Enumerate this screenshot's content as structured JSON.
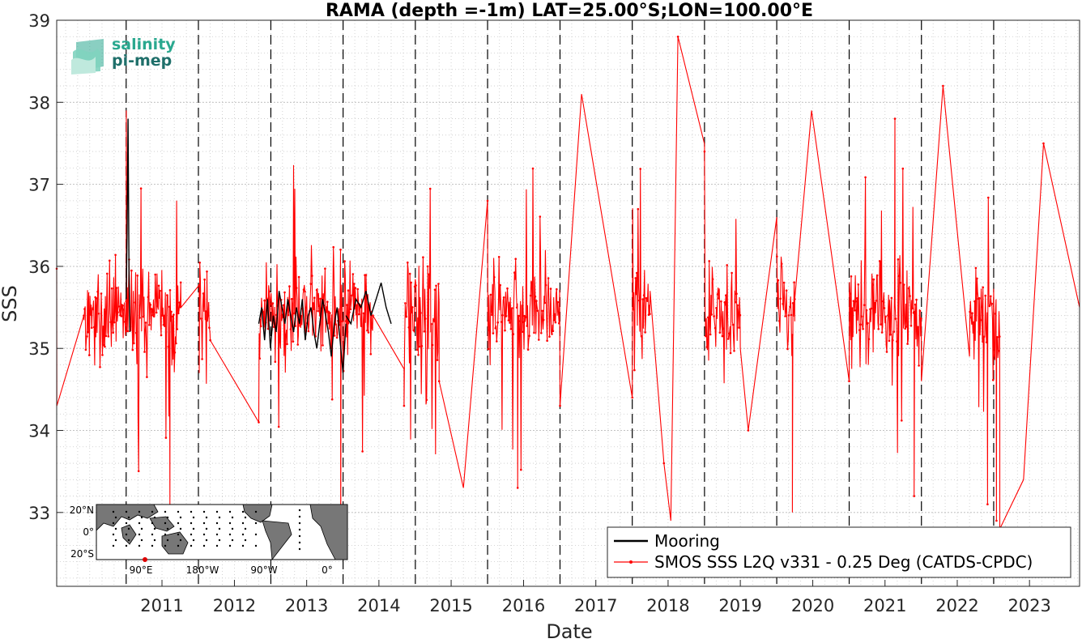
{
  "logo": {
    "line1": "salinity",
    "line2": "pi-mep"
  },
  "chart_data": {
    "type": "line",
    "title": "RAMA (depth =-1m) LAT=25.00°S;LON=100.00°E",
    "xlabel": "Date",
    "ylabel": "SSS",
    "xlim": [
      "2010-01-15",
      "2024-03-10"
    ],
    "ylim": [
      32.1,
      39
    ],
    "yticks": [
      "33",
      "34",
      "35",
      "36",
      "37",
      "38",
      "39"
    ],
    "xticks": [
      "2011",
      "2012",
      "2013",
      "2014",
      "2015",
      "2016",
      "2017",
      "2018",
      "2019",
      "2020",
      "2021",
      "2022",
      "2023"
    ],
    "grid": true,
    "year_dashed_lines": true,
    "legend_position": "bottom-right",
    "series": [
      {
        "name": "Mooring",
        "color": "#000000",
        "segments": [
          {
            "start": "2011-01-01",
            "end": "2011-01-20",
            "values": [
              35.6,
              36.4,
              37.8,
              35.9,
              35.2
            ]
          },
          {
            "start": "2012-11-01",
            "end": "2014-01-15",
            "values": [
              35.3,
              35.5,
              35.1,
              35.6,
              35.0,
              35.4,
              35.2,
              35.7,
              35.5,
              35.3,
              35.6,
              35.4,
              35.2,
              35.5,
              35.3,
              35.6,
              35.1,
              35.4,
              35.5,
              35.2,
              35.0,
              35.3,
              35.6,
              35.4,
              35.2,
              34.9,
              35.3,
              35.5,
              35.1,
              34.7,
              35.3
            ]
          },
          {
            "start": "2014-01-15",
            "end": "2014-09-01",
            "values": [
              35.4,
              35.3,
              35.6,
              35.5,
              35.7,
              35.4,
              35.6,
              35.8,
              35.5,
              35.3
            ]
          }
        ]
      },
      {
        "name": "SMOS SSS L2Q v331 - 0.25 Deg (CATDS-CPDC)",
        "color": "#ff0000",
        "mean": 35.45,
        "typical_range": [
          33.5,
          37.5
        ],
        "approx_step_days": 3,
        "extremes": [
          {
            "date": "2011-01-02",
            "value": 37.9
          },
          {
            "date": "2011-08-10",
            "value": 33.1
          },
          {
            "date": "2012-11-01",
            "value": 34.1
          },
          {
            "date": "2013-12-20",
            "value": 32.5
          },
          {
            "date": "2015-09-01",
            "value": 33.3
          },
          {
            "date": "2016-06-01",
            "value": 33.3
          },
          {
            "date": "2017-04-20",
            "value": 38.1
          },
          {
            "date": "2018-06-10",
            "value": 33.6
          },
          {
            "date": "2018-07-15",
            "value": 32.9
          },
          {
            "date": "2018-08-20",
            "value": 38.8
          },
          {
            "date": "2019-08-10",
            "value": 34.0
          },
          {
            "date": "2020-03-20",
            "value": 33.0
          },
          {
            "date": "2020-06-25",
            "value": 37.9
          },
          {
            "date": "2021-08-20",
            "value": 37.8
          },
          {
            "date": "2021-11-25",
            "value": 33.2
          },
          {
            "date": "2022-04-20",
            "value": 38.2
          },
          {
            "date": "2022-12-01",
            "value": 33.1
          },
          {
            "date": "2023-01-15",
            "value": 32.9
          },
          {
            "date": "2023-02-01",
            "value": 32.8
          },
          {
            "date": "2023-06-01",
            "value": 33.4
          },
          {
            "date": "2023-09-10",
            "value": 37.5
          }
        ],
        "gaps": [
          {
            "from": "2010-01-16",
            "to": "2010-06-01",
            "from_value": 34.3,
            "to_value": 35.4
          },
          {
            "from": "2011-10-05",
            "to": "2012-01-05",
            "from_value": 35.5,
            "to_value": 34.7
          },
          {
            "from": "2012-03-01",
            "to": "2012-11-01",
            "from_value": 35.1,
            "to_value": 34.1
          },
          {
            "from": "2014-06-01",
            "to": "2014-11-05",
            "from_value": 35.4,
            "to_value": 34.3
          },
          {
            "from": "2015-05-01",
            "to": "2016-01-01",
            "from_value": 34.6,
            "to_value": 36.8
          },
          {
            "from": "2017-01-01",
            "to": "2018-01-01",
            "from_value": 34.3,
            "to_value": 34.4
          },
          {
            "from": "2018-04-01",
            "to": "2019-01-01",
            "from_value": 35.7,
            "to_value": 37.4
          },
          {
            "from": "2019-07-01",
            "to": "2020-01-01",
            "from_value": 35.0,
            "to_value": 36.6
          },
          {
            "from": "2020-04-01",
            "to": "2021-01-01",
            "from_value": 35.6,
            "to_value": 34.6
          },
          {
            "from": "2022-01-01",
            "to": "2022-09-01",
            "from_value": 34.6,
            "to_value": 34.9
          },
          {
            "from": "2023-02-01",
            "to": "2024-03-10",
            "from_value": 34.2,
            "to_value": 35.5
          }
        ]
      }
    ],
    "inset_map": {
      "lat_labels": [
        "20°N",
        "0°",
        "20°S"
      ],
      "lon_labels": [
        "90°E",
        "180°W",
        "90°W",
        "0°"
      ],
      "marker": {
        "lat": -25,
        "lon": 100,
        "color": "#dd0000"
      }
    }
  }
}
